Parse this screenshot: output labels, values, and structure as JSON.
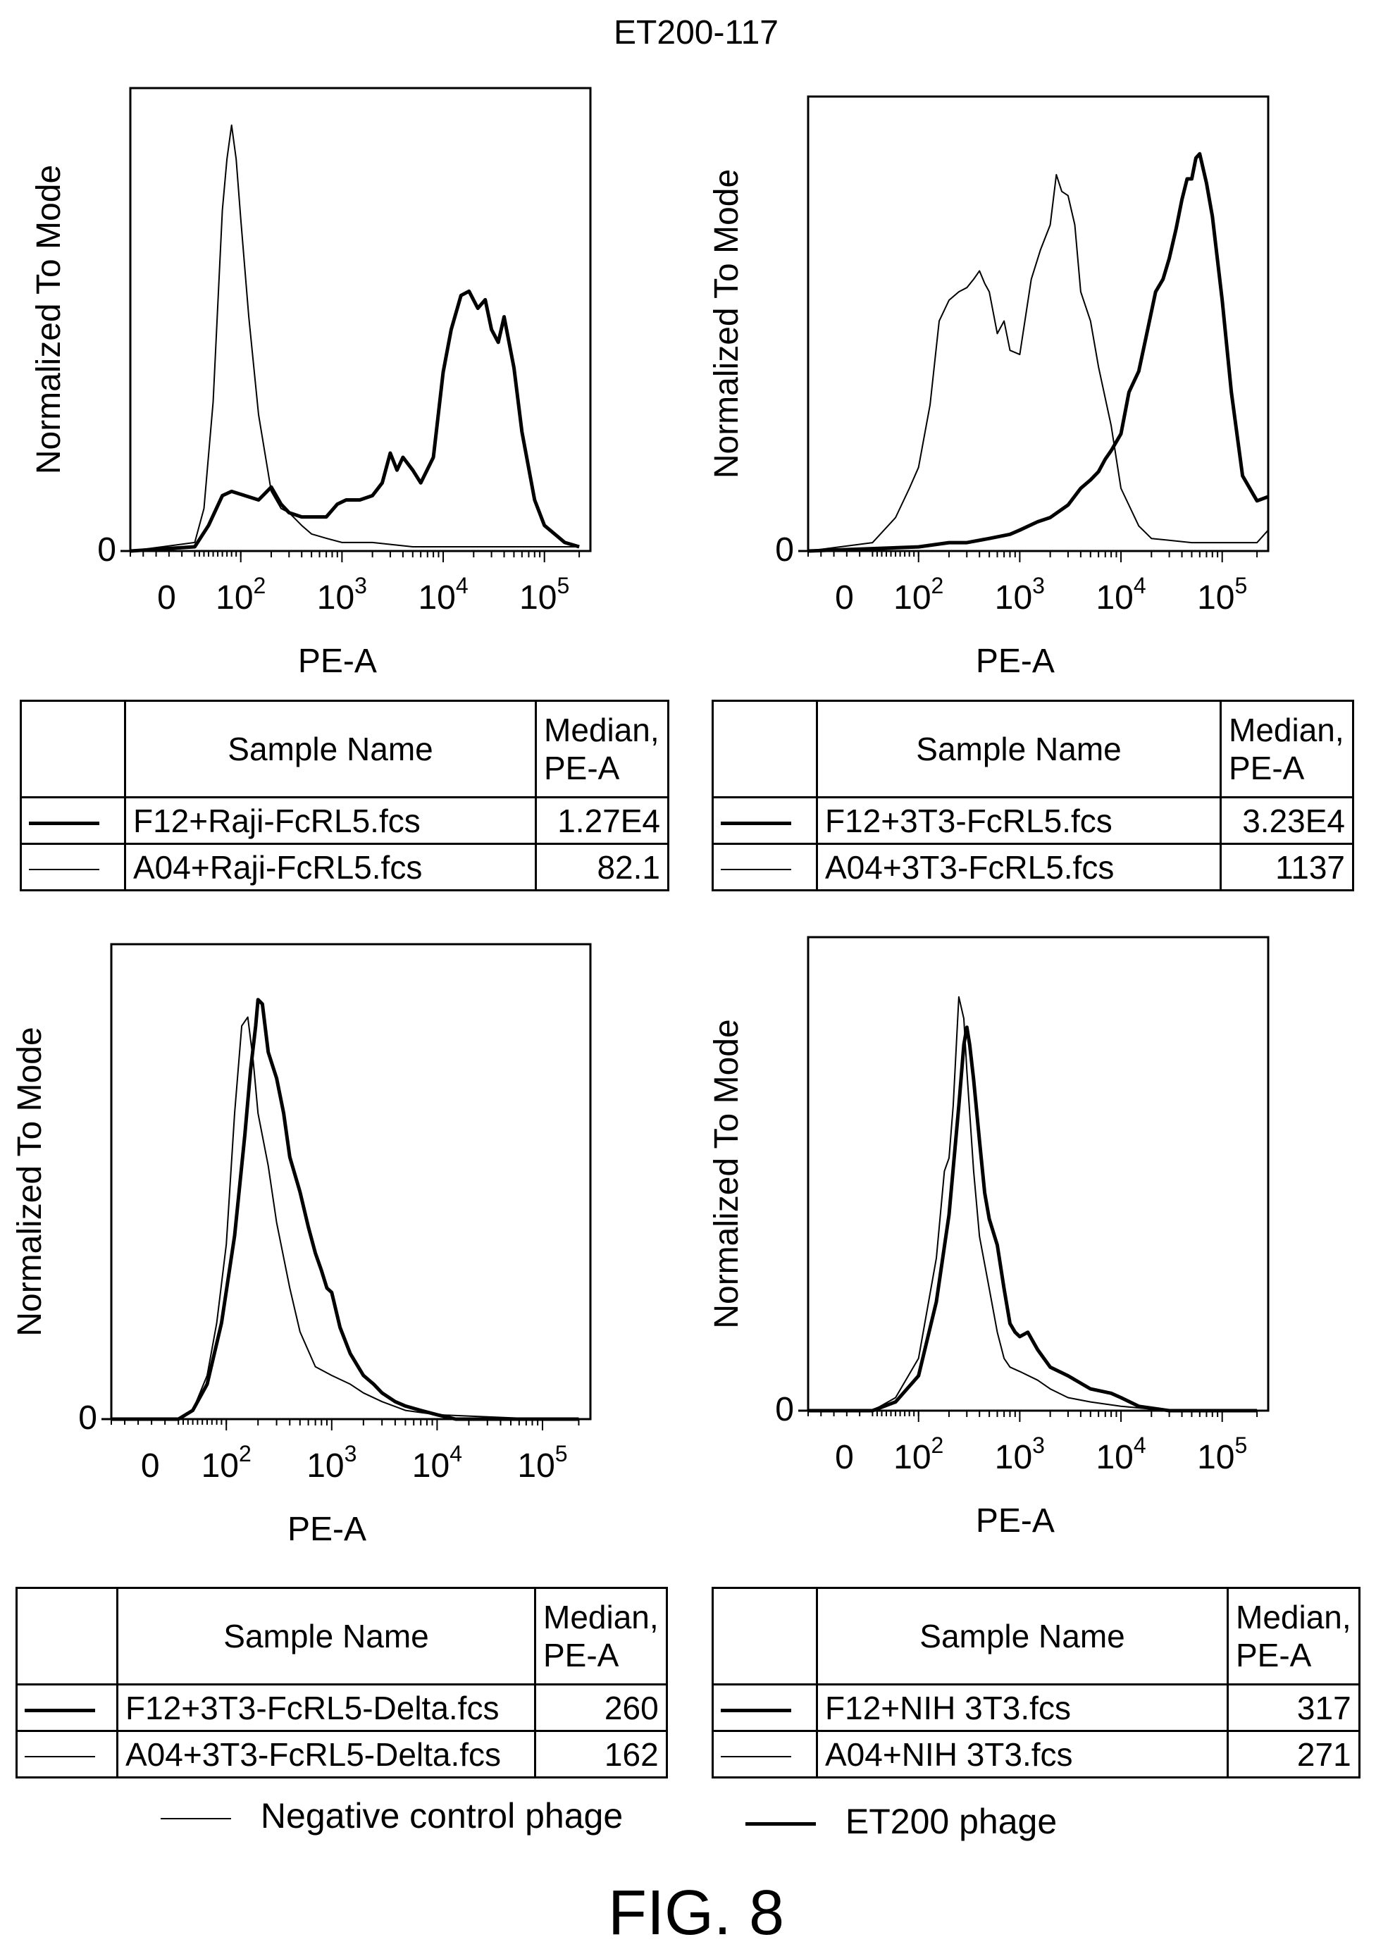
{
  "figure": {
    "title": "ET200-117",
    "figure_label": "FIG. 8",
    "legend": [
      {
        "label": "Negative control phage",
        "line": "thin"
      },
      {
        "label": "ET200 phage",
        "line": "thick"
      }
    ]
  },
  "tables": [
    {
      "header_name": "Sample Name",
      "header_median": "Median, PE-A",
      "rows": [
        {
          "name": "F12+Raji-FcRL5.fcs",
          "median": "1.27E4",
          "line": "thick"
        },
        {
          "name": "A04+Raji-FcRL5.fcs",
          "median": "82.1",
          "line": "thin"
        }
      ]
    },
    {
      "header_name": "Sample Name",
      "header_median": "Median, PE-A",
      "rows": [
        {
          "name": "F12+3T3-FcRL5.fcs",
          "median": "3.23E4",
          "line": "thick"
        },
        {
          "name": "A04+3T3-FcRL5.fcs",
          "median": "1137",
          "line": "thin"
        }
      ]
    },
    {
      "header_name": "Sample Name",
      "header_median": "Median, PE-A",
      "rows": [
        {
          "name": "F12+3T3-FcRL5-Delta.fcs",
          "median": "260",
          "line": "thick"
        },
        {
          "name": "A04+3T3-FcRL5-Delta.fcs",
          "median": "162",
          "line": "thin"
        }
      ]
    },
    {
      "header_name": "Sample Name",
      "header_median": "Median, PE-A",
      "rows": [
        {
          "name": "F12+NIH 3T3.fcs",
          "median": "317",
          "line": "thick"
        },
        {
          "name": "A04+NIH 3T3.fcs",
          "median": "271",
          "line": "thin"
        }
      ]
    }
  ],
  "chart_data": [
    {
      "type": "line",
      "xlabel": "PE-A",
      "ylabel": "Normalized To Mode",
      "y_tick": "0",
      "x_scale": "biexponential",
      "x_tick_labels": [
        "0",
        "10^2",
        "10^3",
        "10^4",
        "10^5"
      ],
      "ylim": [
        0,
        100
      ],
      "series": [
        {
          "name": "F12+Raji-FcRL5.fcs",
          "weight": "thick",
          "x": [
            -50,
            0,
            30,
            60,
            80,
            110,
            150,
            200,
            250,
            300,
            400,
            500,
            700,
            900,
            1100,
            1500,
            2000,
            2500,
            3000,
            3500,
            4000,
            5000,
            6000,
            8000,
            10000,
            12000,
            15000,
            18000,
            22000,
            26000,
            30000,
            35000,
            40000,
            50000,
            60000,
            80000,
            100000,
            150000,
            200000
          ],
          "y": [
            0,
            1,
            6,
            13,
            14,
            13,
            12,
            15,
            11,
            9,
            8,
            8,
            8,
            11,
            12,
            12,
            13,
            16,
            23,
            19,
            22,
            19,
            16,
            22,
            42,
            52,
            60,
            61,
            57,
            59,
            52,
            49,
            55,
            43,
            28,
            12,
            6,
            2,
            1
          ]
        },
        {
          "name": "A04+Raji-FcRL5.fcs",
          "weight": "thin",
          "x": [
            -50,
            0,
            20,
            40,
            60,
            70,
            80,
            90,
            100,
            120,
            150,
            200,
            250,
            300,
            400,
            500,
            700,
            1000,
            2000,
            5000,
            10000,
            50000,
            200000
          ],
          "y": [
            0,
            2,
            10,
            35,
            80,
            92,
            100,
            92,
            78,
            55,
            32,
            14,
            10,
            9,
            6,
            4,
            3,
            2,
            2,
            1,
            1,
            1,
            1
          ]
        }
      ]
    },
    {
      "type": "line",
      "xlabel": "PE-A",
      "ylabel": "Normalized To Mode",
      "y_tick": "0",
      "x_scale": "biexponential",
      "x_tick_labels": [
        "0",
        "10^2",
        "10^3",
        "10^4",
        "10^5"
      ],
      "ylim": [
        0,
        100
      ],
      "series": [
        {
          "name": "F12+3T3-FcRL5.fcs",
          "weight": "thick",
          "x": [
            -50,
            100,
            200,
            300,
            500,
            800,
            1000,
            1500,
            2000,
            3000,
            4000,
            5000,
            6000,
            7000,
            8000,
            10000,
            12000,
            15000,
            18000,
            22000,
            26000,
            30000,
            35000,
            40000,
            45000,
            50000,
            55000,
            60000,
            70000,
            80000,
            100000,
            120000,
            150000,
            200000,
            250000
          ],
          "y": [
            0,
            1,
            2,
            2,
            3,
            4,
            5,
            7,
            8,
            11,
            15,
            17,
            19,
            22,
            24,
            28,
            38,
            43,
            52,
            62,
            65,
            70,
            77,
            84,
            89,
            89,
            94,
            95,
            88,
            80,
            60,
            38,
            18,
            12,
            13
          ]
        },
        {
          "name": "A04+3T3-FcRL5.fcs",
          "weight": "thin",
          "x": [
            -50,
            0,
            50,
            80,
            100,
            130,
            160,
            200,
            250,
            300,
            350,
            400,
            450,
            500,
            600,
            700,
            800,
            1000,
            1300,
            1600,
            2000,
            2300,
            2600,
            3000,
            3500,
            4000,
            5000,
            6000,
            8000,
            10000,
            15000,
            20000,
            50000,
            100000,
            200000,
            250000
          ],
          "y": [
            0,
            2,
            8,
            15,
            20,
            35,
            55,
            60,
            62,
            63,
            65,
            67,
            64,
            62,
            52,
            55,
            48,
            47,
            65,
            72,
            78,
            90,
            86,
            85,
            78,
            62,
            55,
            44,
            30,
            15,
            6,
            3,
            2,
            2,
            2,
            5
          ]
        }
      ]
    },
    {
      "type": "line",
      "xlabel": "PE-A",
      "ylabel": "Normalized To Mode",
      "y_tick": "0",
      "x_scale": "biexponential",
      "x_tick_labels": [
        "0",
        "10^2",
        "10^3",
        "10^4",
        "10^5"
      ],
      "ylim": [
        0,
        100
      ],
      "series": [
        {
          "name": "F12+3T3-FcRL5-Delta.fcs",
          "weight": "thick",
          "x": [
            -50,
            0,
            30,
            60,
            90,
            120,
            150,
            170,
            190,
            200,
            220,
            250,
            300,
            350,
            400,
            500,
            600,
            700,
            800,
            900,
            1000,
            1200,
            1500,
            2000,
            2500,
            3000,
            4000,
            5000,
            7000,
            10000,
            15000,
            30000,
            100000,
            200000
          ],
          "y": [
            0,
            0,
            2,
            8,
            22,
            42,
            65,
            80,
            90,
            96,
            95,
            84,
            78,
            70,
            60,
            52,
            44,
            38,
            34,
            30,
            29,
            21,
            15,
            10,
            8,
            6,
            4,
            3,
            2,
            1,
            0,
            0,
            0,
            0
          ]
        },
        {
          "name": "A04+3T3-FcRL5-Delta.fcs",
          "weight": "thin",
          "x": [
            -50,
            0,
            30,
            60,
            80,
            100,
            120,
            140,
            160,
            180,
            200,
            250,
            300,
            400,
            500,
            700,
            1000,
            1500,
            2000,
            3000,
            5000,
            10000,
            100000,
            200000
          ],
          "y": [
            0,
            0,
            2,
            10,
            22,
            40,
            70,
            90,
            92,
            82,
            70,
            58,
            45,
            30,
            20,
            12,
            10,
            8,
            6,
            4,
            2,
            1,
            0,
            0
          ]
        }
      ]
    },
    {
      "type": "line",
      "xlabel": "PE-A",
      "ylabel": "Normalized To Mode",
      "y_tick": "0",
      "x_scale": "biexponential",
      "x_tick_labels": [
        "0",
        "10^2",
        "10^3",
        "10^4",
        "10^5"
      ],
      "ylim": [
        0,
        100
      ],
      "series": [
        {
          "name": "F12+NIH 3T3.fcs",
          "weight": "thick",
          "x": [
            -50,
            0,
            50,
            100,
            150,
            200,
            250,
            280,
            300,
            320,
            350,
            400,
            450,
            500,
            600,
            700,
            800,
            900,
            1000,
            1200,
            1500,
            2000,
            3000,
            5000,
            8000,
            10000,
            15000,
            30000,
            100000,
            200000
          ],
          "y": [
            0,
            0,
            2,
            8,
            25,
            45,
            70,
            84,
            88,
            84,
            76,
            62,
            50,
            44,
            38,
            28,
            20,
            18,
            17,
            18,
            14,
            10,
            8,
            5,
            4,
            3,
            1,
            0,
            0,
            0
          ]
        },
        {
          "name": "A04+NIH 3T3.fcs",
          "weight": "thin",
          "x": [
            -50,
            0,
            50,
            100,
            150,
            180,
            200,
            220,
            250,
            280,
            300,
            350,
            400,
            500,
            600,
            700,
            800,
            1000,
            1500,
            2000,
            3000,
            5000,
            10000,
            30000,
            100000,
            200000
          ],
          "y": [
            0,
            0,
            3,
            12,
            35,
            55,
            58,
            70,
            95,
            90,
            78,
            55,
            40,
            28,
            18,
            12,
            10,
            9,
            7,
            5,
            3,
            2,
            1,
            0,
            0,
            0
          ]
        }
      ]
    }
  ]
}
